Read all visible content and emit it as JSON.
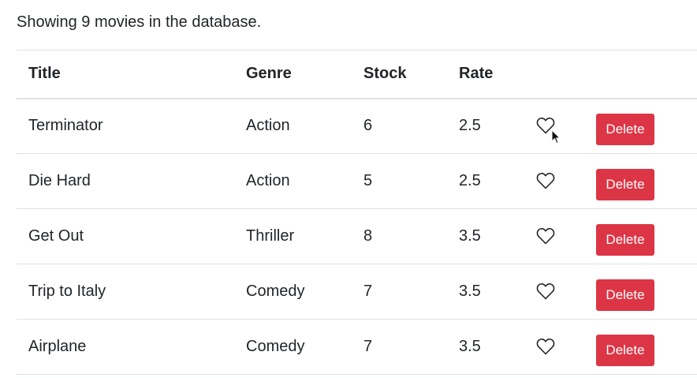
{
  "summary": {
    "text": "Showing 9 movies in the database."
  },
  "table": {
    "headers": {
      "title": "Title",
      "genre": "Genre",
      "stock": "Stock",
      "rate": "Rate"
    },
    "rows": [
      {
        "title": "Terminator",
        "genre": "Action",
        "stock": "6",
        "rate": "2.5",
        "delete_label": "Delete",
        "liked": false
      },
      {
        "title": "Die Hard",
        "genre": "Action",
        "stock": "5",
        "rate": "2.5",
        "delete_label": "Delete",
        "liked": false
      },
      {
        "title": "Get Out",
        "genre": "Thriller",
        "stock": "8",
        "rate": "3.5",
        "delete_label": "Delete",
        "liked": false
      },
      {
        "title": "Trip to Italy",
        "genre": "Comedy",
        "stock": "7",
        "rate": "3.5",
        "delete_label": "Delete",
        "liked": false
      },
      {
        "title": "Airplane",
        "genre": "Comedy",
        "stock": "7",
        "rate": "3.5",
        "delete_label": "Delete",
        "liked": false
      }
    ]
  },
  "icons": {
    "like": "heart-outline-icon",
    "cursor": "mouse-pointer-icon"
  },
  "colors": {
    "delete_button": "#dc3545",
    "text": "#212529",
    "border": "#dee2e6"
  }
}
